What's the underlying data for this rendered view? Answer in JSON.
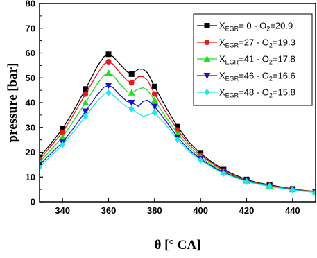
{
  "chart_data": {
    "type": "line",
    "title": "",
    "xlabel": "θ [° CA]",
    "ylabel": "pressure [bar]",
    "xlim": [
      330,
      450
    ],
    "ylim": [
      0,
      80
    ],
    "xticks": [
      340,
      360,
      380,
      400,
      420,
      440
    ],
    "yticks": [
      0,
      10,
      20,
      30,
      40,
      50,
      60,
      70,
      80
    ],
    "grid": false,
    "legend_position": "top-right",
    "x": [
      330,
      340,
      350,
      360,
      370,
      380,
      390,
      400,
      410,
      420,
      430,
      440,
      450
    ],
    "series": [
      {
        "name": "X_EGR= 0 - O_2=20.9",
        "label_parts": {
          "a": "X",
          "a_sub": "EGR",
          "b": "=  0 - O",
          "b_sub": "2",
          "c": "=20.9"
        },
        "color": "#000000",
        "marker": "square",
        "values": [
          18,
          29.5,
          45.5,
          59.5,
          51.5,
          46.5,
          30.3,
          19.5,
          13,
          9,
          6.8,
          5.2,
          4.2
        ],
        "curve": [
          [
            330,
            18
          ],
          [
            335,
            23.5
          ],
          [
            340,
            29.5
          ],
          [
            345,
            37
          ],
          [
            350,
            45.5
          ],
          [
            355,
            54.5
          ],
          [
            358,
            58.5
          ],
          [
            360,
            59.5
          ],
          [
            362,
            58.5
          ],
          [
            365,
            55.5
          ],
          [
            368,
            52.5
          ],
          [
            370,
            51.5
          ],
          [
            373,
            53.5
          ],
          [
            375,
            53.5
          ],
          [
            377,
            52
          ],
          [
            380,
            46.5
          ],
          [
            385,
            38
          ],
          [
            390,
            30.3
          ],
          [
            395,
            24
          ],
          [
            400,
            19.5
          ],
          [
            405,
            16
          ],
          [
            410,
            13
          ],
          [
            415,
            10.8
          ],
          [
            420,
            9
          ],
          [
            425,
            7.7
          ],
          [
            430,
            6.8
          ],
          [
            435,
            6
          ],
          [
            440,
            5.2
          ],
          [
            445,
            4.6
          ],
          [
            450,
            4.2
          ]
        ]
      },
      {
        "name": "X_EGR=27 - O_2=19.3",
        "label_parts": {
          "a": "X",
          "a_sub": "EGR",
          "b": "=27 - O",
          "b_sub": "2",
          "c": "=19.3"
        },
        "color": "#e8191d",
        "marker": "circle",
        "values": [
          17,
          28,
          43.5,
          56.5,
          48,
          43.5,
          29,
          18.8,
          12.5,
          8.7,
          6.6,
          5.1,
          4.1
        ],
        "curve": [
          [
            330,
            17
          ],
          [
            335,
            22.5
          ],
          [
            340,
            28
          ],
          [
            345,
            35.5
          ],
          [
            350,
            43.5
          ],
          [
            355,
            51.5
          ],
          [
            358,
            55.5
          ],
          [
            360,
            56.5
          ],
          [
            362,
            55.5
          ],
          [
            365,
            52
          ],
          [
            368,
            49
          ],
          [
            370,
            48
          ],
          [
            373,
            50.5
          ],
          [
            375,
            50.5
          ],
          [
            377,
            49
          ],
          [
            380,
            43.5
          ],
          [
            385,
            36
          ],
          [
            390,
            29
          ],
          [
            395,
            23
          ],
          [
            400,
            18.8
          ],
          [
            405,
            15.5
          ],
          [
            410,
            12.5
          ],
          [
            415,
            10.5
          ],
          [
            420,
            8.7
          ],
          [
            425,
            7.5
          ],
          [
            430,
            6.6
          ],
          [
            435,
            5.8
          ],
          [
            440,
            5.1
          ],
          [
            445,
            4.5
          ],
          [
            450,
            4.1
          ]
        ]
      },
      {
        "name": "X_EGR=41 - O_2=17.8",
        "label_parts": {
          "a": "X",
          "a_sub": "EGR",
          "b": "=41 - O",
          "b_sub": "2",
          "c": "=17.8"
        },
        "color": "#22dd22",
        "marker": "triangle-up",
        "values": [
          16,
          26,
          40,
          52,
          44,
          41,
          27.5,
          18,
          12,
          8.5,
          6.4,
          5,
          4
        ],
        "curve": [
          [
            330,
            16
          ],
          [
            335,
            21
          ],
          [
            340,
            26
          ],
          [
            345,
            33
          ],
          [
            350,
            40
          ],
          [
            355,
            47.5
          ],
          [
            358,
            51
          ],
          [
            360,
            52
          ],
          [
            362,
            51
          ],
          [
            365,
            47.5
          ],
          [
            368,
            44.5
          ],
          [
            370,
            44
          ],
          [
            373,
            45.5
          ],
          [
            375,
            46
          ],
          [
            377,
            45
          ],
          [
            380,
            41
          ],
          [
            385,
            34
          ],
          [
            390,
            27.5
          ],
          [
            395,
            22
          ],
          [
            400,
            18
          ],
          [
            405,
            14.8
          ],
          [
            410,
            12
          ],
          [
            415,
            10.2
          ],
          [
            420,
            8.5
          ],
          [
            425,
            7.3
          ],
          [
            430,
            6.4
          ],
          [
            435,
            5.7
          ],
          [
            440,
            5
          ],
          [
            445,
            4.4
          ],
          [
            450,
            4
          ]
        ]
      },
      {
        "name": "X_EGR=46 - O_2=16.6",
        "label_parts": {
          "a": "X",
          "a_sub": "EGR",
          "b": "=46 - O",
          "b_sub": "2",
          "c": "=16.6"
        },
        "color": "#1515cc",
        "marker": "triangle-down",
        "values": [
          15,
          24,
          36.5,
          47,
          40,
          38.5,
          26,
          17.3,
          11.8,
          8.3,
          6.3,
          4.9,
          3.9
        ],
        "curve": [
          [
            330,
            15
          ],
          [
            335,
            19.5
          ],
          [
            340,
            24
          ],
          [
            345,
            30
          ],
          [
            350,
            36.5
          ],
          [
            355,
            43
          ],
          [
            358,
            46.2
          ],
          [
            360,
            47
          ],
          [
            362,
            46
          ],
          [
            365,
            43
          ],
          [
            368,
            40.5
          ],
          [
            370,
            40
          ],
          [
            373,
            38.5
          ],
          [
            375,
            40.5
          ],
          [
            377,
            41
          ],
          [
            380,
            38.5
          ],
          [
            385,
            32.5
          ],
          [
            390,
            26
          ],
          [
            395,
            21
          ],
          [
            400,
            17.3
          ],
          [
            405,
            14.3
          ],
          [
            410,
            11.8
          ],
          [
            415,
            10
          ],
          [
            420,
            8.3
          ],
          [
            425,
            7.2
          ],
          [
            430,
            6.3
          ],
          [
            435,
            5.6
          ],
          [
            440,
            4.9
          ],
          [
            445,
            4.3
          ],
          [
            450,
            3.9
          ]
        ]
      },
      {
        "name": "X_EGR=48 - O_2=15.8",
        "label_parts": {
          "a": "X",
          "a_sub": "EGR",
          "b": "=48 - O",
          "b_sub": "2",
          "c": "=15.8"
        },
        "color": "#22e5f0",
        "marker": "diamond",
        "values": [
          14,
          23,
          34.5,
          44,
          37.5,
          36,
          25,
          16.8,
          11.5,
          8.1,
          6.2,
          4.8,
          3.8
        ],
        "curve": [
          [
            330,
            14
          ],
          [
            335,
            18.5
          ],
          [
            340,
            23
          ],
          [
            345,
            28.5
          ],
          [
            350,
            34.5
          ],
          [
            355,
            40.5
          ],
          [
            358,
            43.3
          ],
          [
            360,
            44
          ],
          [
            362,
            43
          ],
          [
            365,
            40.5
          ],
          [
            368,
            38.2
          ],
          [
            370,
            37.5
          ],
          [
            373,
            35.5
          ],
          [
            375,
            34.5
          ],
          [
            377,
            35
          ],
          [
            380,
            36
          ],
          [
            385,
            31
          ],
          [
            390,
            25
          ],
          [
            395,
            20.3
          ],
          [
            400,
            16.8
          ],
          [
            405,
            13.9
          ],
          [
            410,
            11.5
          ],
          [
            415,
            9.8
          ],
          [
            420,
            8.1
          ],
          [
            425,
            7.1
          ],
          [
            430,
            6.2
          ],
          [
            435,
            5.5
          ],
          [
            440,
            4.8
          ],
          [
            445,
            4.2
          ],
          [
            450,
            3.8
          ]
        ]
      }
    ]
  }
}
